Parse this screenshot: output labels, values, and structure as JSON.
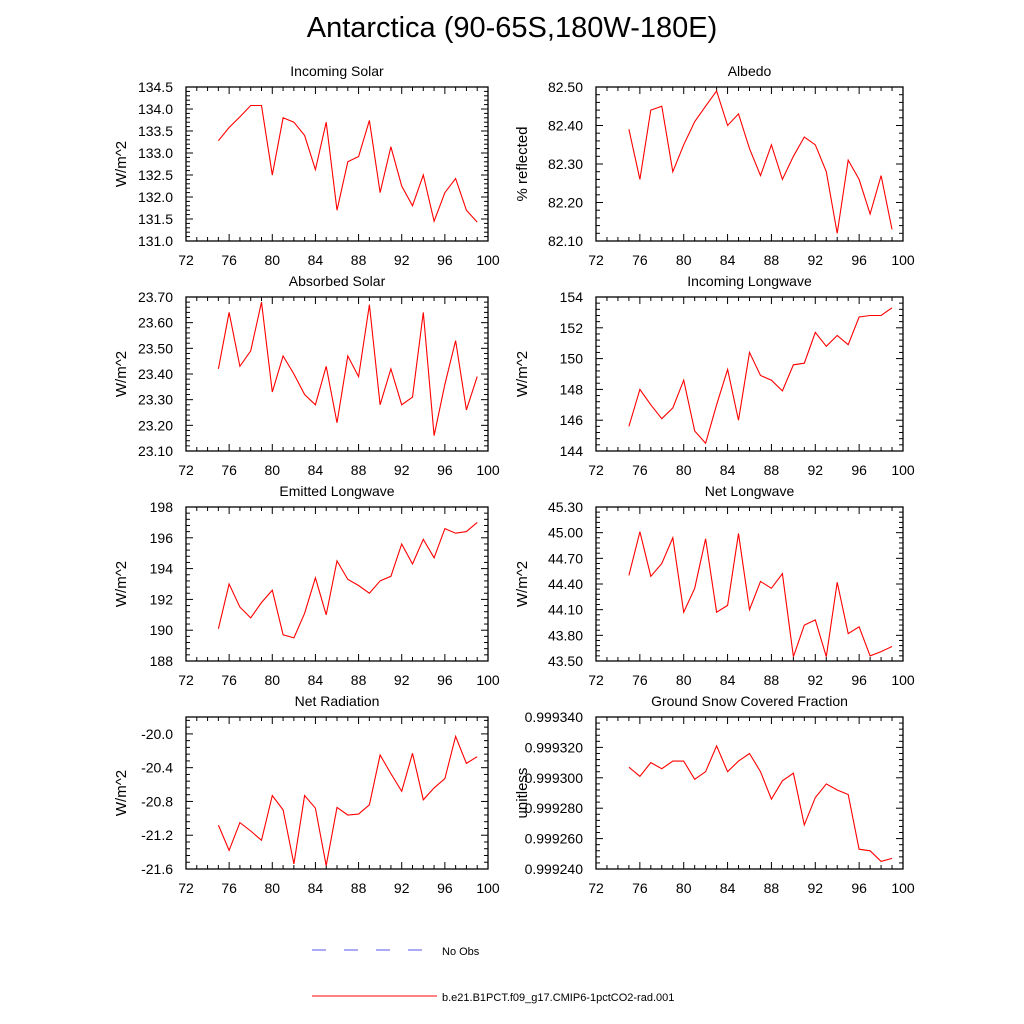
{
  "page": {
    "title": "Antarctica (90-65S,180W-180E)"
  },
  "legend": {
    "items": [
      {
        "label": "No Obs",
        "color": "#5555ee",
        "dash": true
      },
      {
        "label": "b.e21.B1PCT.f09_g17.CMIP6-1pctCO2-rad.001",
        "color": "#ff0000",
        "dash": false
      }
    ]
  },
  "chart_data": [
    {
      "type": "line",
      "title": "Incoming Solar",
      "xlabel": "",
      "ylabel": "W/m^2",
      "xlim": [
        72,
        100
      ],
      "ylim": [
        131.0,
        134.5
      ],
      "xticks": [
        "72",
        "76",
        "80",
        "84",
        "88",
        "92",
        "96",
        "100"
      ],
      "yticks": [
        "131.0",
        "131.5",
        "132.0",
        "132.5",
        "133.0",
        "133.5",
        "134.0",
        "134.5"
      ],
      "series": [
        {
          "color": "#ff0000",
          "x": [
            75,
            76,
            77,
            78,
            79,
            80,
            81,
            82,
            83,
            84,
            85,
            86,
            87,
            88,
            89,
            90,
            91,
            92,
            93,
            94,
            95,
            96,
            97,
            98,
            99
          ],
          "y": [
            133.28,
            133.58,
            133.82,
            134.08,
            134.08,
            132.5,
            133.8,
            133.7,
            133.4,
            132.62,
            133.7,
            131.7,
            132.8,
            132.92,
            133.74,
            132.1,
            133.14,
            132.25,
            131.8,
            132.5,
            131.45,
            132.1,
            132.42,
            131.7,
            131.43
          ]
        }
      ]
    },
    {
      "type": "line",
      "title": "Albedo",
      "xlabel": "",
      "ylabel": "% reflected",
      "xlim": [
        72,
        100
      ],
      "ylim": [
        82.1,
        82.5
      ],
      "xticks": [
        "72",
        "76",
        "80",
        "84",
        "88",
        "92",
        "96",
        "100"
      ],
      "yticks": [
        "82.10",
        "82.20",
        "82.30",
        "82.40",
        "82.50"
      ],
      "series": [
        {
          "color": "#ff0000",
          "x": [
            75,
            76,
            77,
            78,
            79,
            80,
            81,
            82,
            83,
            84,
            85,
            86,
            87,
            88,
            89,
            90,
            91,
            92,
            93,
            94,
            95,
            96,
            97,
            98,
            99
          ],
          "y": [
            82.39,
            82.26,
            82.44,
            82.45,
            82.28,
            82.35,
            82.41,
            82.45,
            82.49,
            82.4,
            82.43,
            82.34,
            82.27,
            82.35,
            82.26,
            82.32,
            82.37,
            82.35,
            82.28,
            82.12,
            82.31,
            82.26,
            82.17,
            82.27,
            82.13
          ]
        }
      ]
    },
    {
      "type": "line",
      "title": "Absorbed Solar",
      "xlabel": "",
      "ylabel": "W/m^2",
      "xlim": [
        72,
        100
      ],
      "ylim": [
        23.1,
        23.7
      ],
      "xticks": [
        "72",
        "76",
        "80",
        "84",
        "88",
        "92",
        "96",
        "100"
      ],
      "yticks": [
        "23.10",
        "23.20",
        "23.30",
        "23.40",
        "23.50",
        "23.60",
        "23.70"
      ],
      "series": [
        {
          "color": "#ff0000",
          "x": [
            75,
            76,
            77,
            78,
            79,
            80,
            81,
            82,
            83,
            84,
            85,
            86,
            87,
            88,
            89,
            90,
            91,
            92,
            93,
            94,
            95,
            96,
            97,
            98,
            99
          ],
          "y": [
            23.42,
            23.64,
            23.43,
            23.49,
            23.68,
            23.33,
            23.47,
            23.4,
            23.32,
            23.28,
            23.43,
            23.21,
            23.47,
            23.39,
            23.67,
            23.28,
            23.42,
            23.28,
            23.31,
            23.64,
            23.16,
            23.36,
            23.53,
            23.26,
            23.39
          ]
        }
      ]
    },
    {
      "type": "line",
      "title": "Incoming Longwave",
      "xlabel": "",
      "ylabel": "W/m^2",
      "xlim": [
        72,
        100
      ],
      "ylim": [
        144,
        154
      ],
      "xticks": [
        "72",
        "76",
        "80",
        "84",
        "88",
        "92",
        "96",
        "100"
      ],
      "yticks": [
        "144",
        "146",
        "148",
        "150",
        "152",
        "154"
      ],
      "series": [
        {
          "color": "#ff0000",
          "x": [
            75,
            76,
            77,
            78,
            79,
            80,
            81,
            82,
            83,
            84,
            85,
            86,
            87,
            88,
            89,
            90,
            91,
            92,
            93,
            94,
            95,
            96,
            97,
            98,
            99
          ],
          "y": [
            145.6,
            148.0,
            147.0,
            146.1,
            146.8,
            148.6,
            145.3,
            144.5,
            147.0,
            149.3,
            146.0,
            150.4,
            148.9,
            148.6,
            147.9,
            149.6,
            149.7,
            151.7,
            150.8,
            151.5,
            150.9,
            152.7,
            152.8,
            152.8,
            153.3
          ]
        }
      ]
    },
    {
      "type": "line",
      "title": "Emitted Longwave",
      "xlabel": "",
      "ylabel": "W/m^2",
      "xlim": [
        72,
        100
      ],
      "ylim": [
        188,
        198
      ],
      "xticks": [
        "72",
        "76",
        "80",
        "84",
        "88",
        "92",
        "96",
        "100"
      ],
      "yticks": [
        "188",
        "190",
        "192",
        "194",
        "196",
        "198"
      ],
      "series": [
        {
          "color": "#ff0000",
          "x": [
            75,
            76,
            77,
            78,
            79,
            80,
            81,
            82,
            83,
            84,
            85,
            86,
            87,
            88,
            89,
            90,
            91,
            92,
            93,
            94,
            95,
            96,
            97,
            98,
            99
          ],
          "y": [
            190.1,
            193.0,
            191.5,
            190.8,
            191.8,
            192.6,
            189.7,
            189.5,
            191.1,
            193.4,
            191.0,
            194.5,
            193.3,
            192.9,
            192.4,
            193.2,
            193.5,
            195.6,
            194.3,
            195.9,
            194.7,
            196.6,
            196.3,
            196.4,
            197.0
          ]
        }
      ]
    },
    {
      "type": "line",
      "title": "Net Longwave",
      "xlabel": "",
      "ylabel": "W/m^2",
      "xlim": [
        72,
        100
      ],
      "ylim": [
        43.5,
        45.3
      ],
      "xticks": [
        "72",
        "76",
        "80",
        "84",
        "88",
        "92",
        "96",
        "100"
      ],
      "yticks": [
        "43.50",
        "43.80",
        "44.10",
        "44.40",
        "44.70",
        "45.00",
        "45.30"
      ],
      "series": [
        {
          "color": "#ff0000",
          "x": [
            75,
            76,
            77,
            78,
            79,
            80,
            81,
            82,
            83,
            84,
            85,
            86,
            87,
            88,
            89,
            90,
            91,
            92,
            93,
            94,
            95,
            96,
            97,
            98,
            99
          ],
          "y": [
            44.5,
            45.01,
            44.49,
            44.64,
            44.94,
            44.07,
            44.35,
            44.93,
            44.07,
            44.15,
            44.99,
            44.1,
            44.43,
            44.35,
            44.52,
            43.55,
            43.92,
            43.98,
            43.55,
            44.42,
            43.82,
            43.9,
            43.56,
            43.61,
            43.67
          ]
        }
      ]
    },
    {
      "type": "line",
      "title": "Net Radiation",
      "xlabel": "",
      "ylabel": "W/m^2",
      "xlim": [
        72,
        100
      ],
      "ylim": [
        -21.6,
        -19.8
      ],
      "xticks": [
        "72",
        "76",
        "80",
        "84",
        "88",
        "92",
        "96",
        "100"
      ],
      "yticks": [
        "-21.6",
        "-21.2",
        "-20.8",
        "-20.4",
        "-20.0"
      ],
      "series": [
        {
          "color": "#ff0000",
          "x": [
            75,
            76,
            77,
            78,
            79,
            80,
            81,
            82,
            83,
            84,
            85,
            86,
            87,
            88,
            89,
            90,
            91,
            92,
            93,
            94,
            95,
            96,
            97,
            98,
            99
          ],
          "y": [
            -21.08,
            -21.38,
            -21.05,
            -21.15,
            -21.26,
            -20.73,
            -20.9,
            -21.54,
            -20.73,
            -20.88,
            -21.56,
            -20.87,
            -20.96,
            -20.95,
            -20.84,
            -20.25,
            -20.47,
            -20.68,
            -20.23,
            -20.78,
            -20.64,
            -20.53,
            -20.03,
            -20.35,
            -20.27
          ]
        }
      ]
    },
    {
      "type": "line",
      "title": "Ground Snow Covered Fraction",
      "xlabel": "",
      "ylabel": "unitless",
      "xlim": [
        72,
        100
      ],
      "ylim": [
        0.99924,
        0.99934
      ],
      "xticks": [
        "72",
        "76",
        "80",
        "84",
        "88",
        "92",
        "96",
        "100"
      ],
      "yticks": [
        "0.999240",
        "0.999260",
        "0.999280",
        "0.999300",
        "0.999320",
        "0.999340"
      ],
      "series": [
        {
          "color": "#ff0000",
          "x": [
            75,
            76,
            77,
            78,
            79,
            80,
            81,
            82,
            83,
            84,
            85,
            86,
            87,
            88,
            89,
            90,
            91,
            92,
            93,
            94,
            95,
            96,
            97,
            98,
            99
          ],
          "y": [
            0.999307,
            0.999301,
            0.99931,
            0.999306,
            0.999311,
            0.999311,
            0.999299,
            0.999304,
            0.999321,
            0.999304,
            0.999311,
            0.999316,
            0.999304,
            0.999286,
            0.999298,
            0.999303,
            0.999269,
            0.999287,
            0.999296,
            0.999292,
            0.999289,
            0.999253,
            0.999252,
            0.999245,
            0.999247
          ]
        }
      ]
    }
  ]
}
